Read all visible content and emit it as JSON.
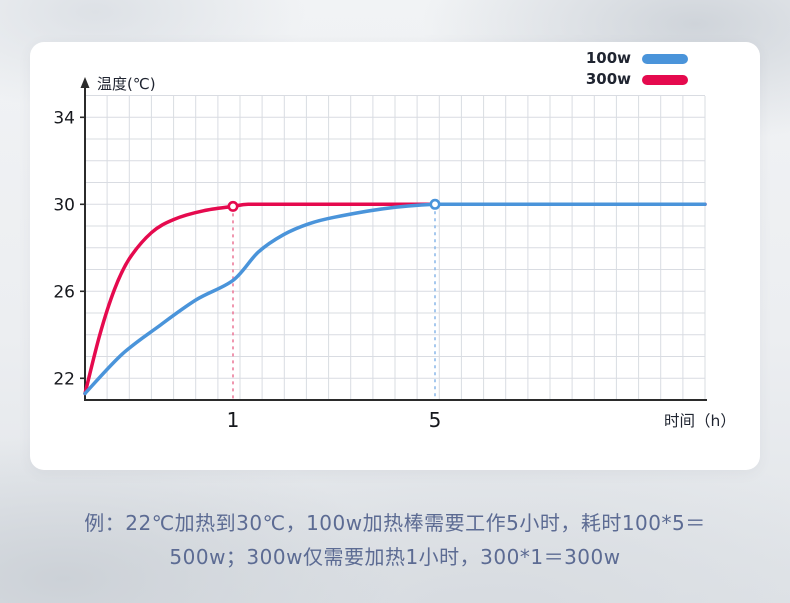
{
  "legend": {
    "items": [
      {
        "label": "100w",
        "color": "#4a94da"
      },
      {
        "label": "300w",
        "color": "#e50a4e"
      }
    ]
  },
  "chart_data": {
    "type": "line",
    "title": "",
    "xlabel": "时间（h）",
    "ylabel": "温度(℃)",
    "x_ticks": [
      1,
      5
    ],
    "y_ticks": [
      22,
      26,
      30,
      34
    ],
    "xlim": [
      0,
      12.4
    ],
    "ylim": [
      21,
      35
    ],
    "grid": true,
    "legend_position": "top-right",
    "series": [
      {
        "name": "300w",
        "color": "#e50a4e",
        "points": [
          [
            0,
            21.3
          ],
          [
            0.1,
            24.0
          ],
          [
            0.2,
            26.1
          ],
          [
            0.3,
            27.5
          ],
          [
            0.45,
            28.7
          ],
          [
            0.6,
            29.3
          ],
          [
            0.8,
            29.7
          ],
          [
            1,
            29.9
          ],
          [
            1.3,
            30
          ],
          [
            2,
            30
          ],
          [
            5,
            30
          ],
          [
            12.4,
            30
          ]
        ]
      },
      {
        "name": "100w",
        "color": "#4a94da",
        "points": [
          [
            0,
            21.3
          ],
          [
            0.25,
            23.1
          ],
          [
            0.5,
            24.4
          ],
          [
            0.75,
            25.6
          ],
          [
            1,
            26.5
          ],
          [
            1.5,
            27.8
          ],
          [
            2,
            28.6
          ],
          [
            2.5,
            29.1
          ],
          [
            3,
            29.4
          ],
          [
            4,
            29.8
          ],
          [
            5,
            30
          ],
          [
            6,
            30
          ],
          [
            8,
            30
          ],
          [
            12.4,
            30
          ]
        ]
      }
    ],
    "markers": [
      {
        "x": 1,
        "y": 29.9,
        "series": "300w",
        "color": "#e50a4e"
      },
      {
        "x": 5,
        "y": 30,
        "series": "100w",
        "color": "#4a94da"
      }
    ],
    "reference_lines": [
      {
        "x": 1,
        "to_y": 29.9,
        "color": "#ec7c9b",
        "style": "dashed"
      },
      {
        "x": 5,
        "to_y": 30,
        "color": "#8fbbe9",
        "style": "dashed"
      }
    ]
  },
  "caption": {
    "line1": "例：22℃加热到30℃，100w加热棒需要工作5小时，耗时100*5＝",
    "line2": "500w；300w仅需要加热1小时，300*1＝300w"
  },
  "colors": {
    "blue": "#4a94da",
    "red": "#e50a4e",
    "caption_text": "#5c6b93",
    "grid": "#d9dce2",
    "axis": "#2b2b2b",
    "tick_text": "#16181d"
  }
}
